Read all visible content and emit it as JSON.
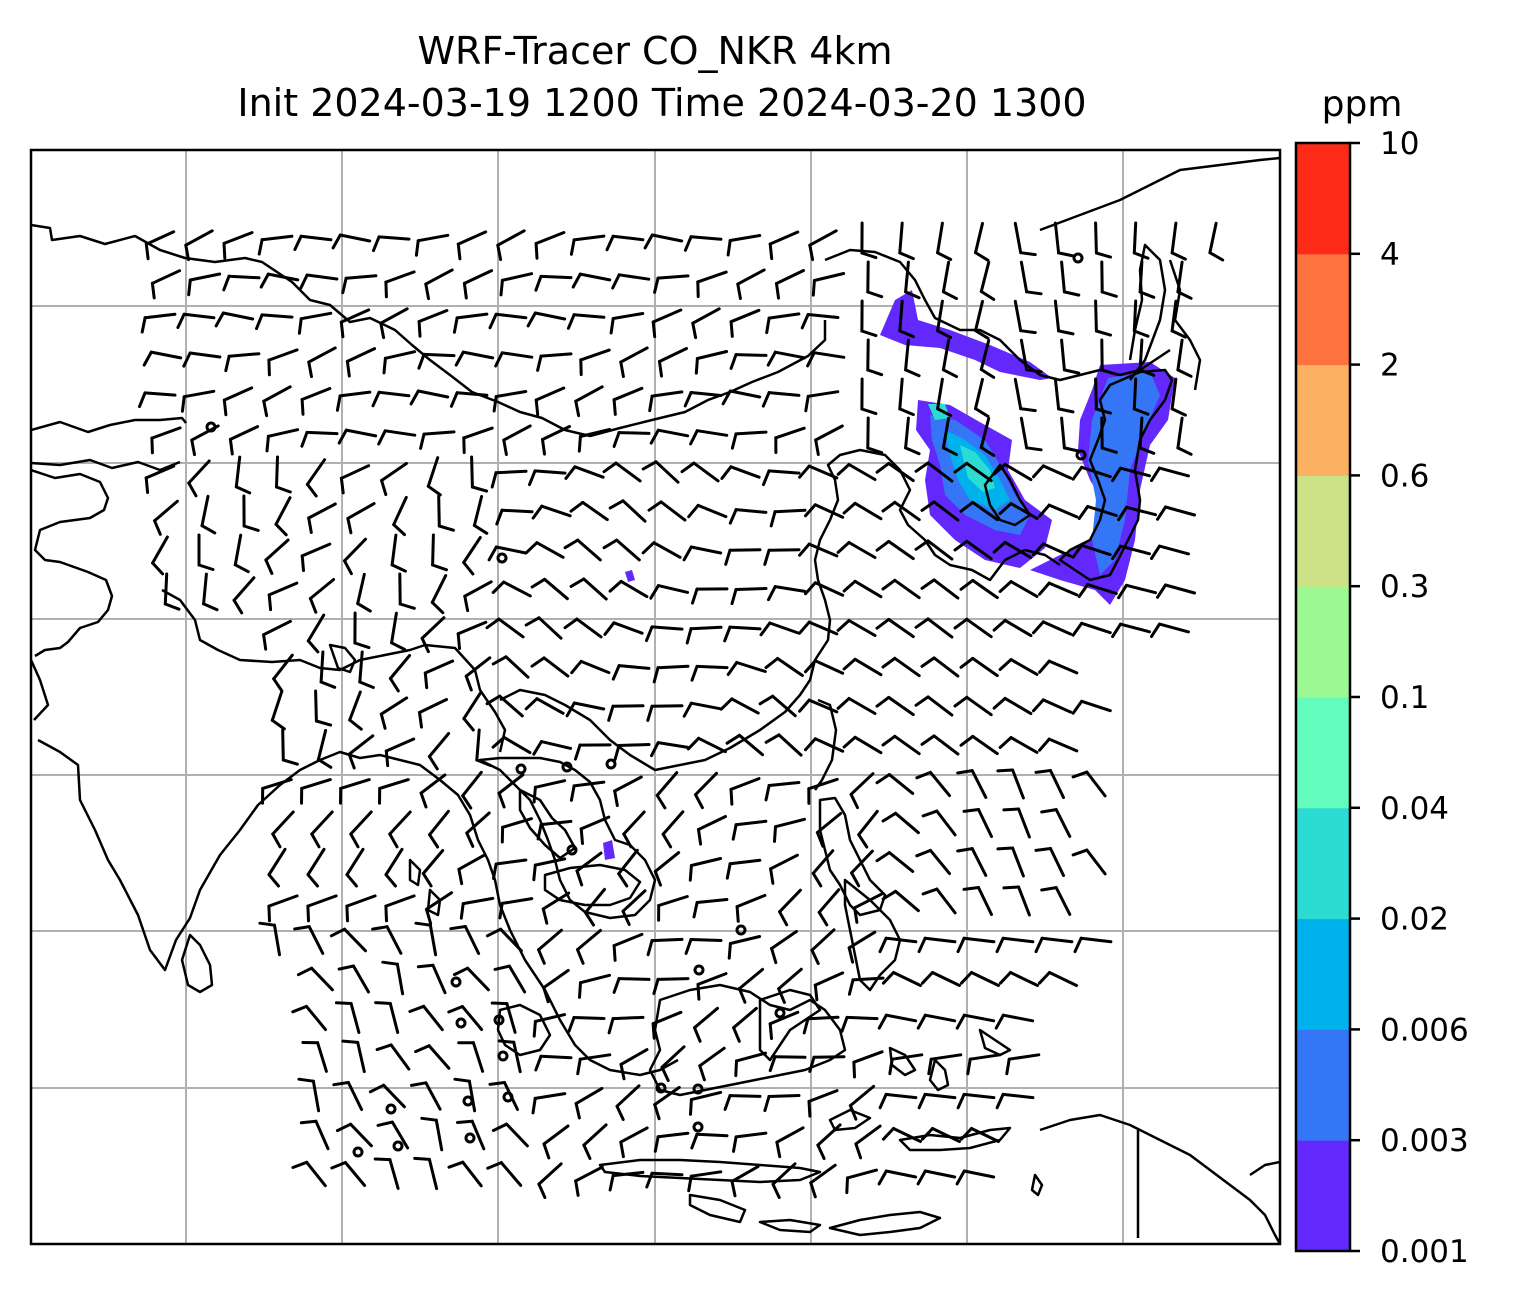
{
  "figure": {
    "title_line1": "WRF-Tracer CO_NKR 4km",
    "title_line2": "Init 2024-03-19 1200 Time 2024-03-20 1300"
  },
  "colorbar": {
    "unit": "ppm",
    "tick_labels": [
      "0.001",
      "0.003",
      "0.006",
      "0.02",
      "0.04",
      "0.1",
      "0.3",
      "0.6",
      "2",
      "4",
      "10"
    ],
    "colors": [
      "#6329fc",
      "#3476f5",
      "#00b2ec",
      "#2cdcd3",
      "#64fcbd",
      "#9cf993",
      "#cde287",
      "#fcb062",
      "#fe7240",
      "#fd2a18"
    ]
  },
  "map": {
    "gridlines": true,
    "tracer_fill_color": "#6329fc",
    "tracer_core_colors": [
      "#3476f5",
      "#00b2ec",
      "#2cdcd3"
    ]
  }
}
